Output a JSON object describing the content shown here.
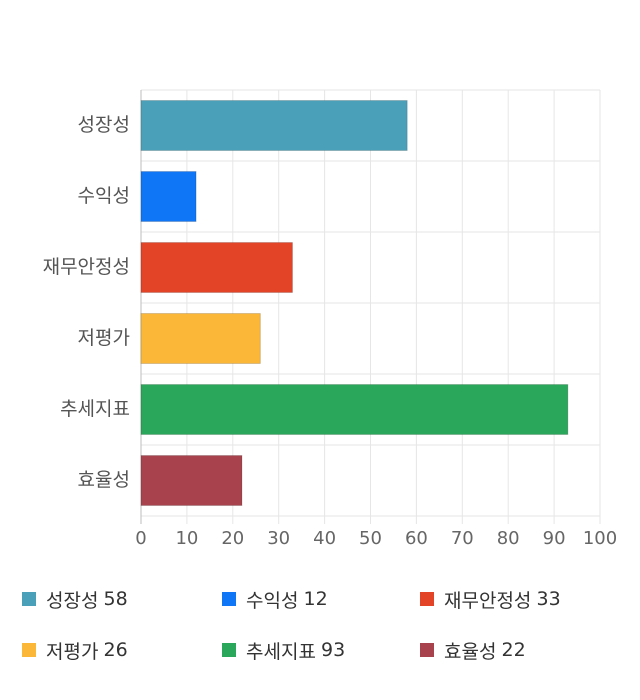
{
  "chart_data": {
    "type": "bar",
    "orientation": "horizontal",
    "categories": [
      "성장성",
      "수익성",
      "재무안정성",
      "저평가",
      "추세지표",
      "효율성"
    ],
    "values": [
      58,
      12,
      33,
      26,
      93,
      22
    ],
    "colors": [
      "#4aa0b8",
      "#0f76f6",
      "#e34327",
      "#fbb737",
      "#2aa75a",
      "#a8434e"
    ],
    "xlim": [
      0,
      100
    ],
    "xticks": [
      "0",
      "10",
      "20",
      "30",
      "40",
      "50",
      "60",
      "70",
      "80",
      "90",
      "100"
    ],
    "grid": true,
    "legend_position": "bottom",
    "legend": [
      {
        "name": "성장성",
        "value": "58"
      },
      {
        "name": "수익성",
        "value": "12"
      },
      {
        "name": "재무안정성",
        "value": "33"
      },
      {
        "name": "저평가",
        "value": "26"
      },
      {
        "name": "추세지표",
        "value": "93"
      },
      {
        "name": "효율성",
        "value": "22"
      }
    ]
  }
}
